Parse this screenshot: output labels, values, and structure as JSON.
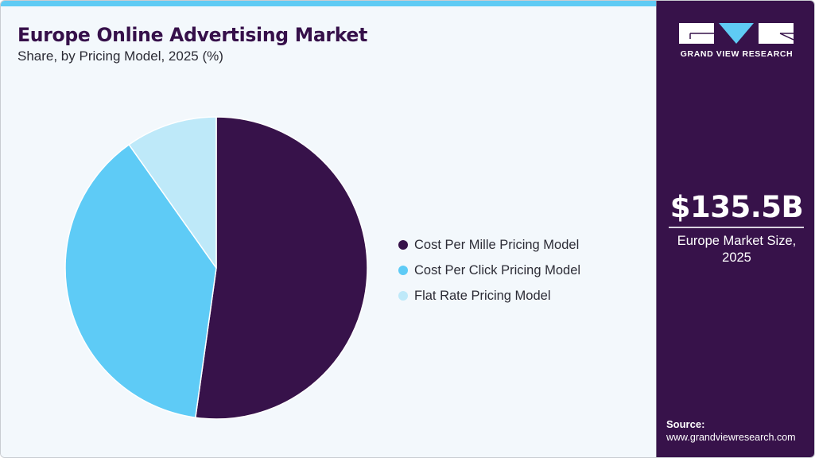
{
  "header": {
    "title": "Europe Online Advertising Market",
    "subtitle": "Share, by Pricing Model, 2025 (%)"
  },
  "legend": {
    "items": [
      {
        "label": "Cost Per Mille Pricing Model",
        "color": "#37124a"
      },
      {
        "label": "Cost Per Click Pricing Model",
        "color": "#5ecbf6"
      },
      {
        "label": "Flat Rate Pricing Model",
        "color": "#bee9f9"
      }
    ]
  },
  "sidebar": {
    "brand": "GRAND VIEW RESEARCH",
    "market_value": "$135.5B",
    "market_label_line1": "Europe Market Size,",
    "market_label_line2": "2025",
    "source_label": "Source:",
    "source_url": "www.grandviewresearch.com"
  },
  "colors": {
    "accent": "#5fcbf4",
    "brand_dark": "#37124a",
    "background": "#f3f8fc"
  },
  "chart_data": {
    "type": "pie",
    "title": "Europe Online Advertising Market",
    "subtitle": "Share, by Pricing Model, 2025 (%)",
    "categories": [
      "Cost Per Mille Pricing Model",
      "Cost Per Click Pricing Model",
      "Flat Rate Pricing Model"
    ],
    "values": [
      52.2,
      38.0,
      9.8
    ],
    "colors": [
      "#37124a",
      "#5ecbf6",
      "#bee9f9"
    ],
    "start_angle": "12 o'clock, clockwise",
    "legend_position": "right",
    "data_labels": false
  }
}
